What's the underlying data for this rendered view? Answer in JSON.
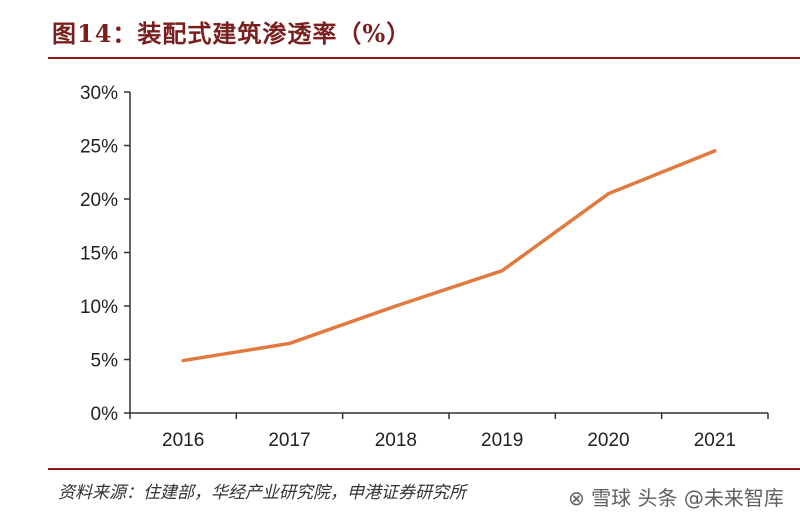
{
  "title": "图14：装配式建筑渗透率（%）",
  "source": "资料来源：住建部，华经产业研究院，申港证券研究所",
  "watermark": "⊗ 雪球 头条 @未来智库",
  "colors": {
    "line": "#e07a3f",
    "title": "#7a1f1f",
    "rule": "#8b1a1a",
    "axis": "#333333"
  },
  "chart_data": {
    "type": "line",
    "title": "装配式建筑渗透率（%）",
    "categories": [
      "2016",
      "2017",
      "2018",
      "2019",
      "2020",
      "2021"
    ],
    "series": [
      {
        "values": [
          4.9,
          6.5,
          10.0,
          13.3,
          20.5,
          24.5
        ]
      }
    ],
    "y_ticks": [
      "0%",
      "5%",
      "10%",
      "15%",
      "20%",
      "25%",
      "30%"
    ],
    "ylim": [
      0,
      30
    ],
    "grid": false,
    "legend": "none"
  }
}
